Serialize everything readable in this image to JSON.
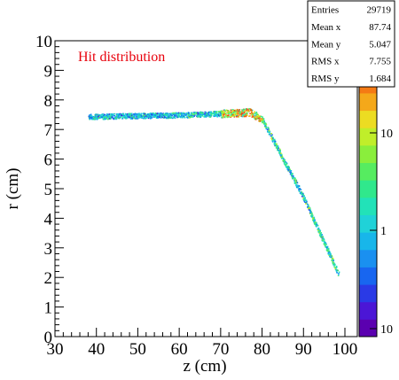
{
  "chart_data": {
    "type": "heatmap",
    "title": "Hit distribution",
    "title_color": "#e8000b",
    "xlabel": "z (cm)",
    "ylabel": "r (cm)",
    "xlim": [
      30,
      103
    ],
    "ylim": [
      0,
      10
    ],
    "xticks": [
      "30",
      "40",
      "50",
      "60",
      "70",
      "80",
      "90",
      "100"
    ],
    "yticks": [
      "0",
      "1",
      "2",
      "3",
      "4",
      "5",
      "6",
      "7",
      "8",
      "9",
      "10"
    ],
    "stats": [
      {
        "label": "Entries",
        "value": "29719"
      },
      {
        "label": "Mean x",
        "value": "87.74"
      },
      {
        "label": "Mean y",
        "value": "5.047"
      },
      {
        "label": "RMS x",
        "value": "7.755"
      },
      {
        "label": "RMS y",
        "value": "1.684"
      }
    ],
    "colorbar": {
      "scale": "log",
      "ticks": [
        "10",
        "1",
        "10"
      ],
      "palette": [
        "#5b00b0",
        "#4b16d6",
        "#2a3ae6",
        "#1866f0",
        "#1a90f0",
        "#18b6ea",
        "#20d2d8",
        "#22e2b8",
        "#30e88c",
        "#56ec60",
        "#8aee3c",
        "#c0ee2a",
        "#ecdc22",
        "#f4a81a",
        "#f47a14",
        "#ee4a10",
        "#d8200e"
      ]
    },
    "hit_band": [
      {
        "z": 38,
        "r": 7.45
      },
      {
        "z": 60,
        "r": 7.5
      },
      {
        "z": 70,
        "r": 7.55
      },
      {
        "z": 77,
        "r": 7.6
      },
      {
        "z": 80,
        "r": 7.35
      },
      {
        "z": 90,
        "r": 4.7
      },
      {
        "z": 98.5,
        "r": 2.1
      }
    ]
  }
}
